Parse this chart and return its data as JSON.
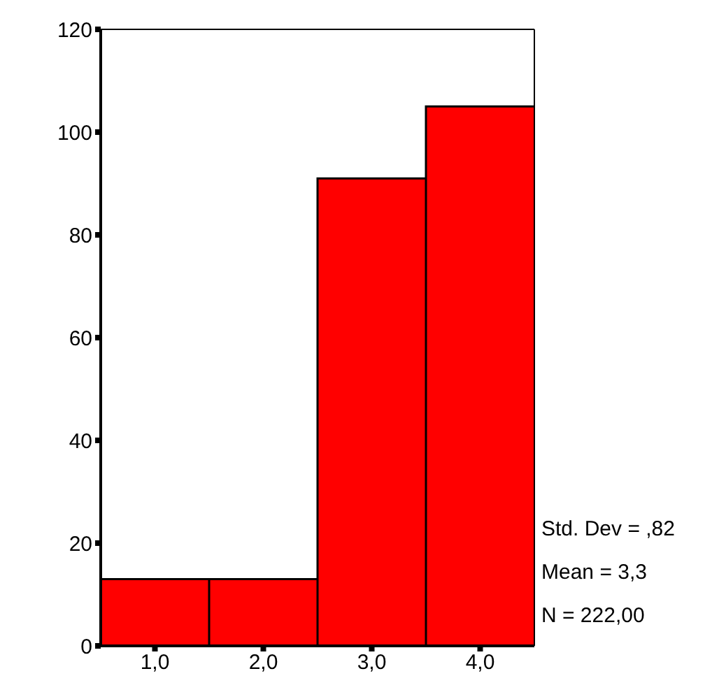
{
  "chart_data": {
    "type": "histogram",
    "bins": [
      0.5,
      1.5,
      2.5,
      3.5,
      4.5
    ],
    "values": [
      13,
      13,
      91,
      105
    ],
    "color": "#ff0000",
    "xlim": [
      0.5,
      4.5
    ],
    "xticks": [
      {
        "value": 1,
        "label": "1,0"
      },
      {
        "value": 2,
        "label": "2,0"
      },
      {
        "value": 3,
        "label": "3,0"
      },
      {
        "value": 4,
        "label": "4,0"
      }
    ],
    "ylim": [
      0,
      120
    ],
    "yticks": [
      0,
      20,
      40,
      60,
      80,
      100,
      120
    ],
    "annotations": [
      "Std. Dev = ,82",
      "Mean = 3,3",
      "N = 222,00"
    ]
  }
}
